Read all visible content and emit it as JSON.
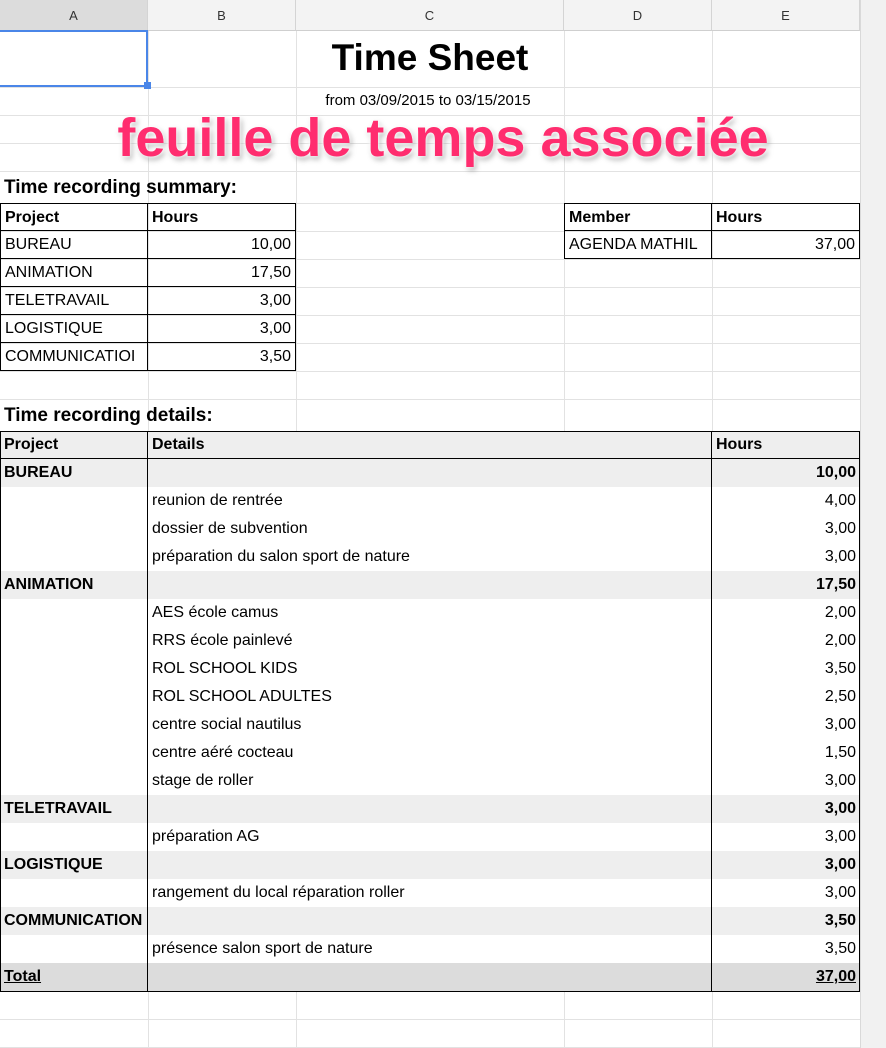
{
  "columns": [
    "A",
    "B",
    "C",
    "D",
    "E"
  ],
  "title": "Time Sheet",
  "date_range": "from 03/09/2015 to 03/15/2015",
  "overlay_caption": "feuille de temps associée",
  "overlay_color": "#ff2d6f",
  "summary": {
    "heading": "Time recording summary:",
    "project_header": "Project",
    "hours_header": "Hours",
    "rows": [
      {
        "project": "BUREAU",
        "hours": "10,00"
      },
      {
        "project": "ANIMATION",
        "hours": "17,50"
      },
      {
        "project": "TELETRAVAIL",
        "hours": "3,00"
      },
      {
        "project": "LOGISTIQUE",
        "hours": "3,00"
      },
      {
        "project": "COMMUNICATIOI",
        "hours": "3,50"
      }
    ],
    "member_header": "Member",
    "member_hours_header": "Hours",
    "members": [
      {
        "member": "AGENDA MATHIL",
        "hours": "37,00"
      }
    ]
  },
  "details": {
    "heading": "Time recording details:",
    "project_header": "Project",
    "details_header": "Details",
    "hours_header": "Hours",
    "groups": [
      {
        "project": "BUREAU",
        "hours": "10,00",
        "items": [
          {
            "details": "reunion de rentrée",
            "hours": "4,00"
          },
          {
            "details": "dossier de subvention",
            "hours": "3,00"
          },
          {
            "details": "préparation du salon sport de nature",
            "hours": "3,00"
          }
        ]
      },
      {
        "project": "ANIMATION",
        "hours": "17,50",
        "items": [
          {
            "details": "AES école camus",
            "hours": "2,00"
          },
          {
            "details": "RRS école painlevé",
            "hours": "2,00"
          },
          {
            "details": "ROL SCHOOL KIDS",
            "hours": "3,50"
          },
          {
            "details": "ROL SCHOOL ADULTES",
            "hours": "2,50"
          },
          {
            "details": "centre social nautilus",
            "hours": "3,00"
          },
          {
            "details": "centre aéré cocteau",
            "hours": "1,50"
          },
          {
            "details": "stage de roller",
            "hours": "3,00"
          }
        ]
      },
      {
        "project": "TELETRAVAIL",
        "hours": "3,00",
        "items": [
          {
            "details": "préparation AG",
            "hours": "3,00"
          }
        ]
      },
      {
        "project": "LOGISTIQUE",
        "hours": "3,00",
        "items": [
          {
            "details": "rangement du local réparation roller",
            "hours": "3,00"
          }
        ]
      },
      {
        "project": "COMMUNICATION",
        "hours": "3,50",
        "items": [
          {
            "details": "présence salon sport de nature",
            "hours": "3,50"
          }
        ]
      }
    ],
    "total_label": "Total",
    "total_hours": "37,00"
  }
}
